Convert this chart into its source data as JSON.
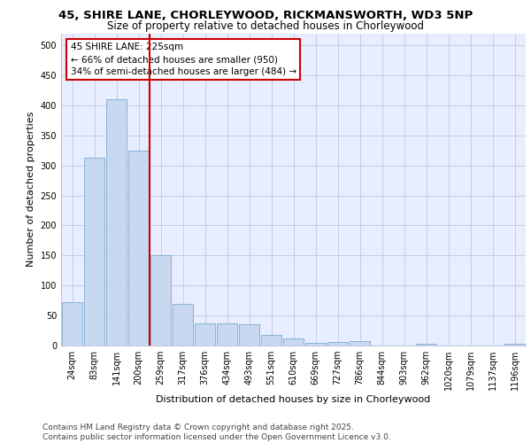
{
  "title_line1": "45, SHIRE LANE, CHORLEYWOOD, RICKMANSWORTH, WD3 5NP",
  "title_line2": "Size of property relative to detached houses in Chorleywood",
  "xlabel": "Distribution of detached houses by size in Chorleywood",
  "ylabel": "Number of detached properties",
  "categories": [
    "24sqm",
    "83sqm",
    "141sqm",
    "200sqm",
    "259sqm",
    "317sqm",
    "376sqm",
    "434sqm",
    "493sqm",
    "551sqm",
    "610sqm",
    "669sqm",
    "727sqm",
    "786sqm",
    "844sqm",
    "903sqm",
    "962sqm",
    "1020sqm",
    "1079sqm",
    "1137sqm",
    "1196sqm"
  ],
  "values": [
    72,
    313,
    410,
    325,
    150,
    70,
    37,
    37,
    36,
    17,
    12,
    5,
    6,
    7,
    0,
    0,
    3,
    0,
    0,
    0,
    3
  ],
  "bar_color": "#c8d8f0",
  "bar_edge_color": "#7aaad0",
  "annotation_line1": "45 SHIRE LANE: 225sqm",
  "annotation_line2": "← 66% of detached houses are smaller (950)",
  "annotation_line3": "34% of semi-detached houses are larger (484) →",
  "vline_x_index": 3,
  "footer_line1": "Contains HM Land Registry data © Crown copyright and database right 2025.",
  "footer_line2": "Contains public sector information licensed under the Open Government Licence v3.0.",
  "ylim": [
    0,
    520
  ],
  "yticks": [
    0,
    50,
    100,
    150,
    200,
    250,
    300,
    350,
    400,
    450,
    500
  ],
  "background_color": "#e8eeff",
  "grid_color": "#c0c8e0",
  "vline_color": "#cc0000",
  "annotation_box_color": "#cc0000",
  "title_fontsize": 9.5,
  "subtitle_fontsize": 8.5,
  "axis_label_fontsize": 8,
  "tick_fontsize": 7,
  "annotation_fontsize": 7.5,
  "footer_fontsize": 6.5
}
